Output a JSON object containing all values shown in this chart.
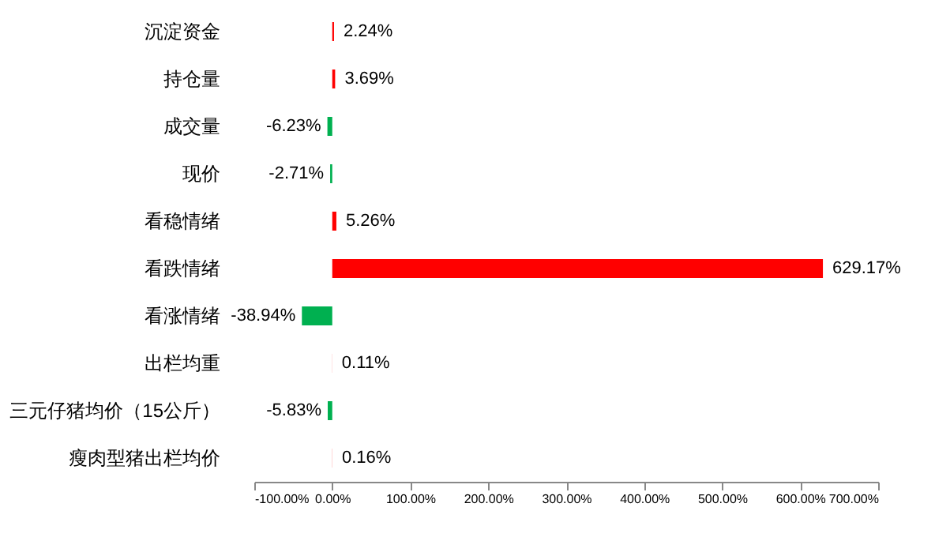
{
  "chart_data": {
    "type": "bar",
    "orientation": "horizontal",
    "categories": [
      "沉淀资金",
      "持仓量",
      "成交量",
      "现价",
      "看稳情绪",
      "看跌情绪",
      "看涨情绪",
      "出栏均重",
      "三元仔猪均价（15公斤）",
      "瘦肉型猪出栏均价"
    ],
    "values": [
      2.24,
      3.69,
      -6.23,
      -2.71,
      5.26,
      629.17,
      -38.94,
      0.11,
      -5.83,
      0.16
    ],
    "colors": [
      "#ff0000",
      "#ff0000",
      "#00b050",
      "#00b050",
      "#ff0000",
      "#ff0000",
      "#00b050",
      "#ff0000",
      "#00b050",
      "#ff0000"
    ],
    "value_labels": [
      "2.24%",
      "3.69%",
      "-6.23%",
      "-2.71%",
      "5.26%",
      "629.17%",
      "-38.94%",
      "0.11%",
      "-5.83%",
      "0.16%"
    ],
    "xlim": [
      -100,
      700
    ],
    "xticks": [
      {
        "value": -100,
        "label": "-100.00%"
      },
      {
        "value": 0,
        "label": "0.00%"
      },
      {
        "value": 100,
        "label": "100.00%"
      },
      {
        "value": 200,
        "label": "200.00%"
      },
      {
        "value": 300,
        "label": "300.00%"
      },
      {
        "value": 400,
        "label": "400.00%"
      },
      {
        "value": 500,
        "label": "500.00%"
      },
      {
        "value": 600,
        "label": "600.00%"
      },
      {
        "value": 700,
        "label": "700.00%"
      }
    ],
    "grid": false
  }
}
